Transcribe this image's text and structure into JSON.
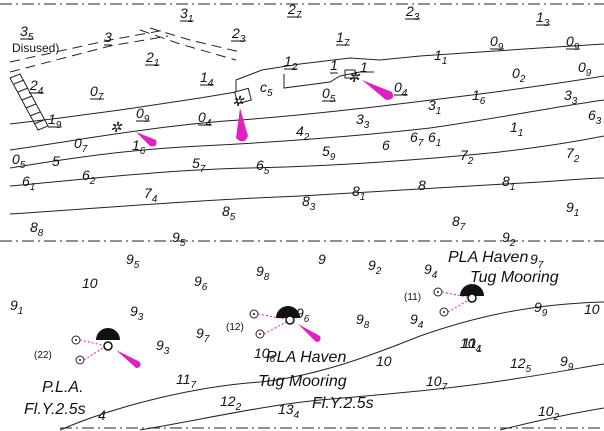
{
  "chart": {
    "colors": {
      "ink": "#111111",
      "light": "#e020c0",
      "paper": "#ffffff"
    },
    "labels": {
      "disused": "Disused)",
      "pla_haven_1_line1": "PLA Haven",
      "pla_haven_1_line2": "Tug Mooring",
      "pla_haven_2_line1": "PLA Haven",
      "pla_haven_2_line2": "Tug Mooring",
      "pla_line1": "P.L.A.",
      "pla_line2": "Fl.Y.2.5s",
      "fl_right": "Fl.Y.2.5s",
      "buoy_22": "(22)",
      "buoy_12": "(12)",
      "buoy_11": "(11)"
    },
    "soundings": [
      {
        "m": "3",
        "s": "5",
        "u": true
      },
      {
        "m": "3",
        "s": "",
        "u": true
      },
      {
        "m": "3",
        "s": "1",
        "u": true
      },
      {
        "m": "2",
        "s": "7",
        "u": true
      },
      {
        "m": "2",
        "s": "3",
        "u": true
      },
      {
        "m": "2",
        "s": "3",
        "u": true
      },
      {
        "m": "1",
        "s": "3",
        "u": true
      },
      {
        "m": "0",
        "s": "9",
        "u": true
      },
      {
        "m": "2",
        "s": "1",
        "u": true
      },
      {
        "m": "1",
        "s": "7",
        "u": true
      },
      {
        "m": "1",
        "s": "",
        "u": true
      },
      {
        "m": "1",
        "s": "1",
        "u": false
      },
      {
        "m": "1",
        "s": "2",
        "u": true
      },
      {
        "m": "1",
        "s": "",
        "u": false
      },
      {
        "m": "0",
        "s": "9",
        "u": true
      },
      {
        "m": "2",
        "s": "4",
        "u": true
      },
      {
        "m": "1",
        "s": "4",
        "u": true
      },
      {
        "m": "0",
        "s": "7",
        "u": true
      },
      {
        "m": "0",
        "s": "2",
        "u": false
      },
      {
        "m": "0",
        "s": "9",
        "u": false
      },
      {
        "m": "1",
        "s": "9",
        "u": true
      },
      {
        "m": "0",
        "s": "5",
        "u": true
      },
      {
        "m": "0",
        "s": "4",
        "u": true
      },
      {
        "m": "1",
        "s": "6",
        "u": false
      },
      {
        "m": "3",
        "s": "3",
        "u": false
      },
      {
        "m": "0",
        "s": "9",
        "u": true
      },
      {
        "m": "0",
        "s": "4",
        "u": true
      },
      {
        "m": "c",
        "s": "5",
        "u": false
      },
      {
        "m": "3",
        "s": "3",
        "u": false
      },
      {
        "m": "3",
        "s": "1",
        "u": false
      },
      {
        "m": "6",
        "s": "3",
        "u": false
      },
      {
        "m": "1",
        "s": "1",
        "u": false
      },
      {
        "m": "0",
        "s": "7",
        "u": false
      },
      {
        "m": "1",
        "s": "6",
        "u": false
      },
      {
        "m": "4",
        "s": "2",
        "u": false
      },
      {
        "m": "6",
        "s": "1",
        "u": false
      },
      {
        "m": "0",
        "s": "5",
        "u": false
      },
      {
        "m": "5",
        "s": "",
        "u": false
      },
      {
        "m": "5",
        "s": "9",
        "u": false
      },
      {
        "m": "6",
        "s": "",
        "u": false
      },
      {
        "m": "6",
        "s": "7",
        "u": false
      },
      {
        "m": "6",
        "s": "1",
        "u": false
      },
      {
        "m": "6",
        "s": "2",
        "u": false
      },
      {
        "m": "5",
        "s": "7",
        "u": false
      },
      {
        "m": "6",
        "s": "5",
        "u": false
      },
      {
        "m": "7",
        "s": "2",
        "u": false
      },
      {
        "m": "7",
        "s": "2",
        "u": false
      },
      {
        "m": "7",
        "s": "4",
        "u": false
      },
      {
        "m": "8",
        "s": "3",
        "u": false
      },
      {
        "m": "8",
        "s": "1",
        "u": false
      },
      {
        "m": "8",
        "s": "",
        "u": false
      },
      {
        "m": "8",
        "s": "1",
        "u": false
      },
      {
        "m": "8",
        "s": "8",
        "u": false
      },
      {
        "m": "8",
        "s": "5",
        "u": false
      },
      {
        "m": "9",
        "s": "1",
        "u": false
      },
      {
        "m": "8",
        "s": "7",
        "u": false
      },
      {
        "m": "9",
        "s": "5",
        "u": false
      },
      {
        "m": "9",
        "s": "2",
        "u": false
      },
      {
        "m": "9",
        "s": "5",
        "u": false
      },
      {
        "m": "9",
        "s": "",
        "u": false
      },
      {
        "m": "9",
        "s": "2",
        "u": false
      },
      {
        "m": "9",
        "s": "7",
        "u": false
      },
      {
        "m": "10",
        "s": "",
        "u": false
      },
      {
        "m": "9",
        "s": "6",
        "u": false
      },
      {
        "m": "9",
        "s": "4",
        "u": false
      },
      {
        "m": "9",
        "s": "8",
        "u": false
      },
      {
        "m": "9",
        "s": "1",
        "u": false
      },
      {
        "m": "9",
        "s": "3",
        "u": false
      },
      {
        "m": "9",
        "s": "6",
        "u": false
      },
      {
        "m": "9",
        "s": "8",
        "u": false
      },
      {
        "m": "9",
        "s": "9",
        "u": false
      },
      {
        "m": "10",
        "s": "",
        "u": false
      },
      {
        "m": "9",
        "s": "4",
        "u": false
      },
      {
        "m": "9",
        "s": "3",
        "u": false
      },
      {
        "m": "9",
        "s": "7",
        "u": false
      },
      {
        "m": "10",
        "s": "6",
        "u": false
      },
      {
        "m": "10",
        "s": "",
        "u": false
      },
      {
        "m": "10",
        "s": "4",
        "u": false
      },
      {
        "m": "11",
        "s": "1",
        "u": false
      },
      {
        "m": "12",
        "s": "5",
        "u": false
      },
      {
        "m": "9",
        "s": "9",
        "u": false
      },
      {
        "m": "11",
        "s": "7",
        "u": false
      },
      {
        "m": "10",
        "s": "7",
        "u": false
      },
      {
        "m": "12",
        "s": "2",
        "u": false
      },
      {
        "m": "13",
        "s": "4",
        "u": false
      },
      {
        "m": "10",
        "s": "2",
        "u": false
      },
      {
        "m": "4",
        "s": "",
        "u": false
      }
    ]
  }
}
